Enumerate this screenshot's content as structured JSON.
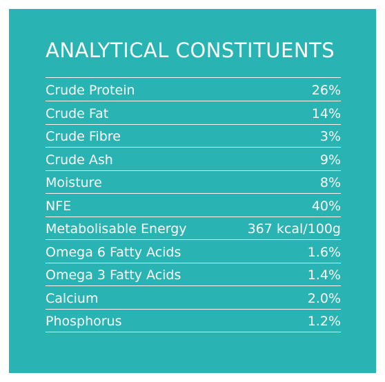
{
  "title": "ANALYTICAL CONSTITUENTS",
  "colors": {
    "panel_background": "#29b3b2",
    "text": "#ffffff"
  },
  "constituents": [
    {
      "name": "Crude Protein",
      "value": "26%"
    },
    {
      "name": "Crude Fat",
      "value": "14%"
    },
    {
      "name": "Crude Fibre",
      "value": "3%"
    },
    {
      "name": "Crude Ash",
      "value": "9%"
    },
    {
      "name": "Moisture",
      "value": "8%"
    },
    {
      "name": "NFE",
      "value": "40%"
    },
    {
      "name": "Metabolisable Energy",
      "value": "367 kcal/100g"
    },
    {
      "name": "Omega 6 Fatty Acids",
      "value": "1.6%"
    },
    {
      "name": "Omega 3 Fatty Acids",
      "value": "1.4%"
    },
    {
      "name": "Calcium",
      "value": "2.0%"
    },
    {
      "name": "Phosphorus",
      "value": "1.2%"
    }
  ]
}
